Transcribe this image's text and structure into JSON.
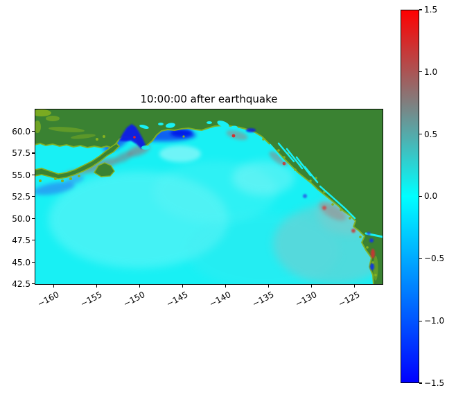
{
  "figure": {
    "title": "10:00:00 after earthquake"
  },
  "chart_data": {
    "type": "heatmap",
    "title": "10:00:00 after earthquake",
    "subject": "Tsunami sea-surface elevation map of the Gulf of Alaska and northeast Pacific Ocean 10 hours after an earthquake; green land, cyan near-zero ocean, blue negative and red positive wave heights concentrated along the Alaska and US west coasts",
    "x_axis": {
      "label": "",
      "tick_labels": [
        "−160",
        "−155",
        "−150",
        "−145",
        "−140",
        "−135",
        "−130",
        "−125"
      ],
      "tick_values": [
        -160,
        -155,
        -150,
        -145,
        -140,
        -135,
        -130,
        -125
      ],
      "range_estimate": [
        -162.5,
        -121.5
      ],
      "unit": "degrees longitude",
      "tick_rotation_deg": 28
    },
    "y_axis": {
      "label": "",
      "tick_labels": [
        "60.0",
        "57.5",
        "55.0",
        "52.5",
        "50.0",
        "47.5",
        "45.0",
        "42.5"
      ],
      "tick_values": [
        60.0,
        57.5,
        55.0,
        52.5,
        50.0,
        47.5,
        45.0,
        42.5
      ],
      "range_estimate": [
        42.4,
        62.6
      ],
      "unit": "degrees latitude"
    },
    "colorbar": {
      "min": -1.5,
      "max": 1.5,
      "tick_labels": [
        "1.5",
        "1.0",
        "0.5",
        "0.0",
        "−0.5",
        "−1.0",
        "−1.5"
      ],
      "tick_values": [
        1.5,
        1.0,
        0.5,
        0.0,
        -0.5,
        -1.0,
        -1.5
      ],
      "colormap_stops": [
        {
          "value": 1.5,
          "color": "#ff0000"
        },
        {
          "value": 0.0,
          "color": "#00ffff"
        },
        {
          "value": -1.5,
          "color": "#0000ff"
        }
      ]
    },
    "grid": false,
    "legend": "none (colorbar only)",
    "visible_features": [
      "Alaska mainland (green, top)",
      "Alaska Peninsula and Kodiak Island chain (lower left)",
      "Cook Inlet / Prince William Sound strong negative (blue) wave patches",
      "Reddish-gray positive wave smudges along Alaska Peninsula coast",
      "Southeast Alaska / British Columbia coast with small red and blue spots",
      "Vancouver Island and US west coast with red/blue wave spots",
      "Broad grayish positive field offshore Washington-Oregon",
      "Open ocean near zero elevation (cyan)"
    ]
  },
  "colors": {
    "background": "#ffffff",
    "ocean": "#18f0f4",
    "land": "#3a8232",
    "landEdge": "#86b21f",
    "spine": "#000000",
    "cbTop": "#ff0000",
    "cbMid": "#00ffff",
    "cbBottom": "#0000ff"
  }
}
